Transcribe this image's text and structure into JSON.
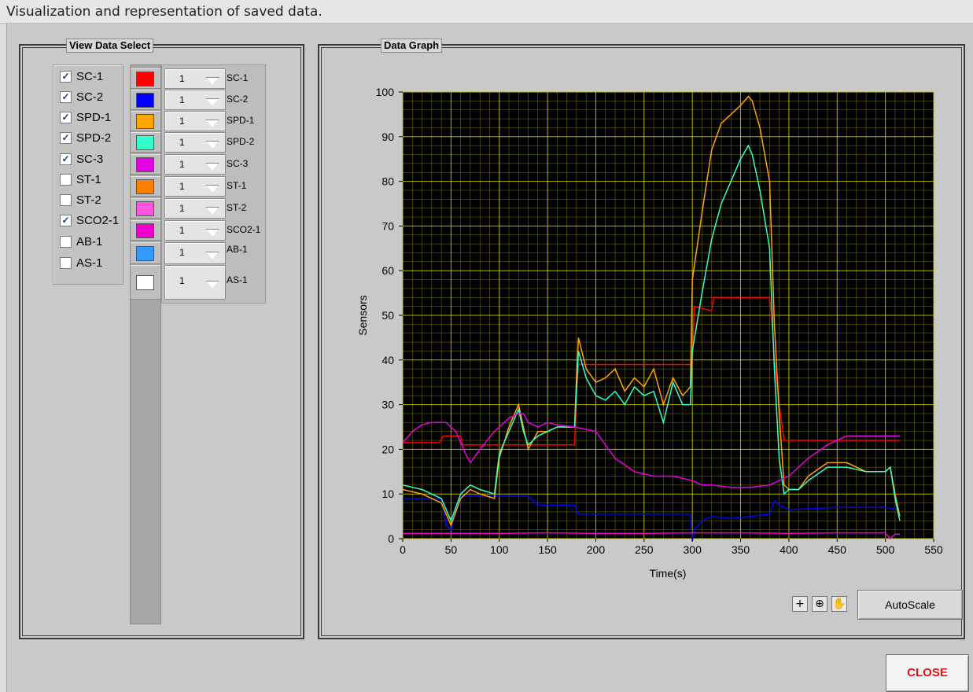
{
  "window": {
    "title": "Visualization and representation of saved data."
  },
  "view_panel": {
    "title": "View Data Select"
  },
  "graph_panel": {
    "title": "Data Graph"
  },
  "sensors": [
    {
      "label": "SC-1",
      "checked": true,
      "color": "#ff0000",
      "scale": "1"
    },
    {
      "label": "SC-2",
      "checked": true,
      "color": "#0000ff",
      "scale": "1"
    },
    {
      "label": "SPD-1",
      "checked": true,
      "color": "#ffa500",
      "scale": "1"
    },
    {
      "label": "SPD-2",
      "checked": true,
      "color": "#33ffcc",
      "scale": "1"
    },
    {
      "label": "SC-3",
      "checked": true,
      "color": "#e600e6",
      "scale": "1"
    },
    {
      "label": "ST-1",
      "checked": false,
      "color": "#ff8000",
      "scale": "1"
    },
    {
      "label": "ST-2",
      "checked": false,
      "color": "#ff55dd",
      "scale": "1"
    },
    {
      "label": "SCO2-1",
      "checked": true,
      "color": "#ee00cc",
      "scale": "1"
    },
    {
      "label": "AB-1",
      "checked": false,
      "color": "#3399ff",
      "scale": "1"
    },
    {
      "label": "AS-1",
      "checked": false,
      "color": "#ffffff",
      "scale": "1"
    }
  ],
  "chart_data": {
    "type": "line",
    "xlabel": "Time(s)",
    "ylabel": "Sensors",
    "xlim": [
      0,
      550
    ],
    "ylim": [
      0,
      100
    ],
    "xticks": [
      0,
      50,
      100,
      150,
      200,
      250,
      300,
      350,
      400,
      450,
      500,
      550
    ],
    "yticks": [
      0,
      10,
      20,
      30,
      40,
      50,
      60,
      70,
      80,
      90,
      100
    ],
    "grid": true,
    "background": "#000000",
    "grid_color": "#c8c800",
    "series": [
      {
        "name": "SC-1",
        "color": "#ff0000",
        "x": [
          0,
          38,
          42,
          60,
          62,
          100,
          178,
          180,
          182,
          300,
          302,
          320,
          322,
          380,
          382,
          385,
          390,
          395,
          500,
          515
        ],
        "y": [
          21.5,
          21.5,
          23,
          23,
          21,
          21,
          21,
          33,
          39,
          39,
          52,
          51,
          54,
          54,
          50,
          40,
          30,
          22,
          22,
          22
        ]
      },
      {
        "name": "SC-2",
        "color": "#0000ff",
        "x": [
          0,
          40,
          45,
          50,
          55,
          60,
          95,
          100,
          130,
          140,
          178,
          182,
          298,
          300,
          302,
          310,
          320,
          340,
          360,
          380,
          385,
          390,
          400,
          450,
          500,
          515
        ],
        "y": [
          9,
          9,
          3,
          2,
          6,
          9.5,
          9.5,
          9.5,
          9.5,
          7.5,
          7.5,
          5.5,
          5.5,
          -0.5,
          2,
          4,
          5,
          4.5,
          5,
          5.5,
          8.5,
          7.5,
          6.5,
          7,
          7,
          6.5
        ]
      },
      {
        "name": "SPD-1",
        "color": "#ffa500",
        "x": [
          0,
          20,
          40,
          50,
          60,
          70,
          80,
          95,
          100,
          110,
          120,
          125,
          130,
          140,
          150,
          160,
          178,
          180,
          182,
          190,
          200,
          210,
          220,
          230,
          240,
          250,
          260,
          270,
          280,
          290,
          298,
          300,
          310,
          320,
          330,
          340,
          350,
          358,
          362,
          370,
          380,
          385,
          390,
          395,
          400,
          410,
          420,
          440,
          460,
          480,
          500,
          505,
          510,
          515
        ],
        "y": [
          11,
          10,
          8,
          3,
          9,
          11,
          10,
          9,
          18,
          25,
          30,
          25,
          20,
          24,
          24,
          25,
          25,
          36,
          45,
          38,
          35,
          36,
          38,
          33,
          36,
          34,
          38,
          30,
          36,
          32,
          34,
          58,
          73,
          87,
          93,
          95,
          97,
          99,
          98,
          92,
          80,
          48,
          28,
          12,
          11,
          11,
          14,
          17,
          17,
          15,
          15,
          16,
          10,
          5
        ]
      },
      {
        "name": "SPD-2",
        "color": "#33ffcc",
        "x": [
          0,
          20,
          40,
          50,
          60,
          70,
          80,
          95,
          100,
          110,
          120,
          125,
          130,
          140,
          150,
          160,
          178,
          180,
          182,
          190,
          200,
          210,
          220,
          230,
          240,
          250,
          260,
          270,
          280,
          290,
          298,
          300,
          310,
          320,
          330,
          340,
          350,
          358,
          362,
          370,
          380,
          385,
          390,
          395,
          400,
          410,
          420,
          440,
          460,
          480,
          500,
          505,
          510,
          515
        ],
        "y": [
          12,
          11,
          9,
          4,
          10,
          12,
          11,
          10,
          19,
          24,
          29,
          24,
          21,
          23,
          24,
          25,
          25,
          33,
          42,
          36,
          32,
          31,
          33,
          30,
          34,
          32,
          33,
          26,
          35,
          30,
          30,
          42,
          55,
          67,
          75,
          80,
          85,
          88,
          86,
          78,
          65,
          38,
          18,
          10,
          11,
          11,
          13,
          16,
          16,
          15,
          15,
          16,
          9,
          4
        ]
      },
      {
        "name": "SC-3",
        "color": "#e600e6",
        "x": [
          0,
          10,
          20,
          30,
          40,
          45,
          55,
          65,
          70,
          80,
          95,
          100,
          110,
          120,
          125,
          130,
          140,
          150,
          160,
          178,
          200,
          210,
          220,
          240,
          260,
          280,
          300,
          310,
          320,
          340,
          360,
          380,
          400,
          420,
          440,
          460,
          480,
          500,
          515
        ],
        "y": [
          21.5,
          24,
          25.5,
          26,
          26,
          26,
          24,
          19,
          17,
          20,
          24,
          25,
          27,
          28,
          28,
          26,
          25,
          26,
          25.5,
          25,
          24,
          21,
          18,
          15,
          14,
          14,
          13,
          12,
          12,
          11.5,
          11.5,
          12,
          14,
          18,
          21,
          23,
          23,
          23,
          23
        ]
      },
      {
        "name": "SCO2-1",
        "color": "#ee00cc",
        "x": [
          0,
          50,
          100,
          150,
          200,
          250,
          300,
          350,
          400,
          450,
          500,
          505,
          510,
          515
        ],
        "y": [
          1.2,
          1.2,
          1.2,
          1.3,
          1.2,
          1.2,
          1.3,
          1.3,
          1.2,
          1.3,
          1.3,
          0,
          1,
          1
        ]
      }
    ]
  },
  "graph_tools": [
    {
      "name": "crosshair-cursor-icon",
      "glyph": "+"
    },
    {
      "name": "zoom-icon",
      "glyph": "⊕"
    },
    {
      "name": "pan-hand-icon",
      "glyph": "✋"
    }
  ],
  "buttons": {
    "autoscale": "AutoScale",
    "close": "CLOSE"
  }
}
